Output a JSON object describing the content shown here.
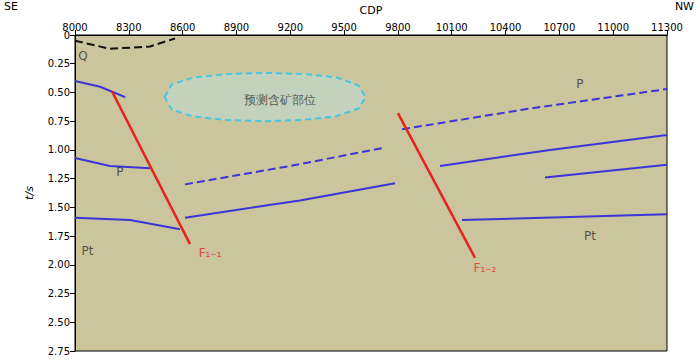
{
  "chart_data": {
    "type": "line",
    "x_label": "CDP",
    "y_label": "t/s",
    "x_direction_labels": [
      "SE",
      "NW"
    ],
    "xlim": [
      8000,
      11300
    ],
    "xticks": [
      8000,
      8300,
      8600,
      8900,
      9200,
      9500,
      9800,
      10100,
      10400,
      10700,
      11000,
      11300
    ],
    "ylim": [
      0,
      2.75
    ],
    "yticks": [
      0,
      0.25,
      {
        "value": 0.5,
        "label": "0.50"
      },
      0.75,
      {
        "value": 1,
        "label": "1.00"
      },
      1.25,
      {
        "value": 1.5,
        "label": "1.50"
      },
      1.75,
      {
        "value": 2,
        "label": "2.00"
      },
      2.25,
      {
        "value": 2.5,
        "label": "2.50"
      },
      2.75
    ],
    "grid": false,
    "series": [
      {
        "color": "#111111",
        "line_style": "dashed",
        "x": [
          8000,
          8195,
          8418,
          8557
        ],
        "values": [
          0.05,
          0.12,
          0.1,
          0.03
        ]
      },
      {
        "color": "#3b35d8",
        "line_style": "solid",
        "x": [
          8000,
          8140,
          8280
        ],
        "values": [
          0.4,
          0.45,
          0.54
        ]
      },
      {
        "color": "#3b35d8",
        "line_style": "solid",
        "x": [
          8000,
          8195,
          8418
        ],
        "values": [
          1.07,
          1.14,
          1.16
        ]
      },
      {
        "color": "#3b35d8",
        "line_style": "dashed",
        "x": [
          8613,
          9198,
          9728
        ],
        "values": [
          1.3,
          1.14,
          0.98
        ]
      },
      {
        "color": "#3b35d8",
        "line_style": "dashed",
        "x": [
          9823,
          10536,
          11300
        ],
        "values": [
          0.82,
          0.64,
          0.47
        ]
      },
      {
        "color": "#3b35d8",
        "line_style": "solid",
        "x": [
          8613,
          9254,
          9784
        ],
        "values": [
          1.59,
          1.44,
          1.29
        ]
      },
      {
        "color": "#3b35d8",
        "line_style": "solid",
        "x": [
          10035,
          10648,
          11300
        ],
        "values": [
          1.14,
          1.0,
          0.87
        ]
      },
      {
        "color": "#3b35d8",
        "line_style": "solid",
        "x": [
          10620,
          11300
        ],
        "values": [
          1.24,
          1.13
        ]
      },
      {
        "color": "#3b35d8",
        "line_style": "solid",
        "x": [
          10157,
          11300
        ],
        "values": [
          1.61,
          1.56
        ]
      },
      {
        "color": "#3b35d8",
        "line_style": "solid",
        "x": [
          8000,
          8307,
          8585
        ],
        "values": [
          1.59,
          1.61,
          1.69
        ]
      },
      {
        "color": "#e8231f",
        "line_style": "solid",
        "x": [
          8206,
          8641
        ],
        "values": [
          0.49,
          1.82
        ]
      },
      {
        "color": "#e8231f",
        "line_style": "solid",
        "x": [
          9800,
          10230
        ],
        "values": [
          0.68,
          1.94
        ]
      },
      {
        "type": "polygon",
        "color": "#45c8e6",
        "line_style": "dashed",
        "x": [
          8500,
          8540,
          8660,
          8850,
          9060,
          9280,
          9460,
          9580,
          9620,
          9580,
          9450,
          9260,
          9060,
          8850,
          8660,
          8540
        ],
        "values": [
          0.54,
          0.43,
          0.37,
          0.34,
          0.33,
          0.34,
          0.37,
          0.44,
          0.54,
          0.64,
          0.71,
          0.74,
          0.75,
          0.74,
          0.71,
          0.65
        ]
      }
    ],
    "annotations": [
      {
        "text": "Q",
        "x": 8045,
        "y": 0.18,
        "color": "#333333"
      },
      {
        "text": "预测含矿部位",
        "x": 9140,
        "y": 0.57,
        "color": "#333333"
      },
      {
        "text": "P",
        "x": 8250,
        "y": 1.19,
        "color": "#333333"
      },
      {
        "text": "Pt",
        "x": 8070,
        "y": 1.88,
        "color": "#333333"
      },
      {
        "text": "P",
        "x": 10815,
        "y": 0.43,
        "color": "#333333"
      },
      {
        "text": "Pt",
        "x": 10870,
        "y": 1.75,
        "color": "#333333"
      },
      {
        "text": "F₁₋₁",
        "x": 8753,
        "y": 1.9,
        "color": "#e8231f"
      },
      {
        "text": "F₁₋₂",
        "x": 10285,
        "y": 2.03,
        "color": "#e8231f"
      }
    ]
  }
}
